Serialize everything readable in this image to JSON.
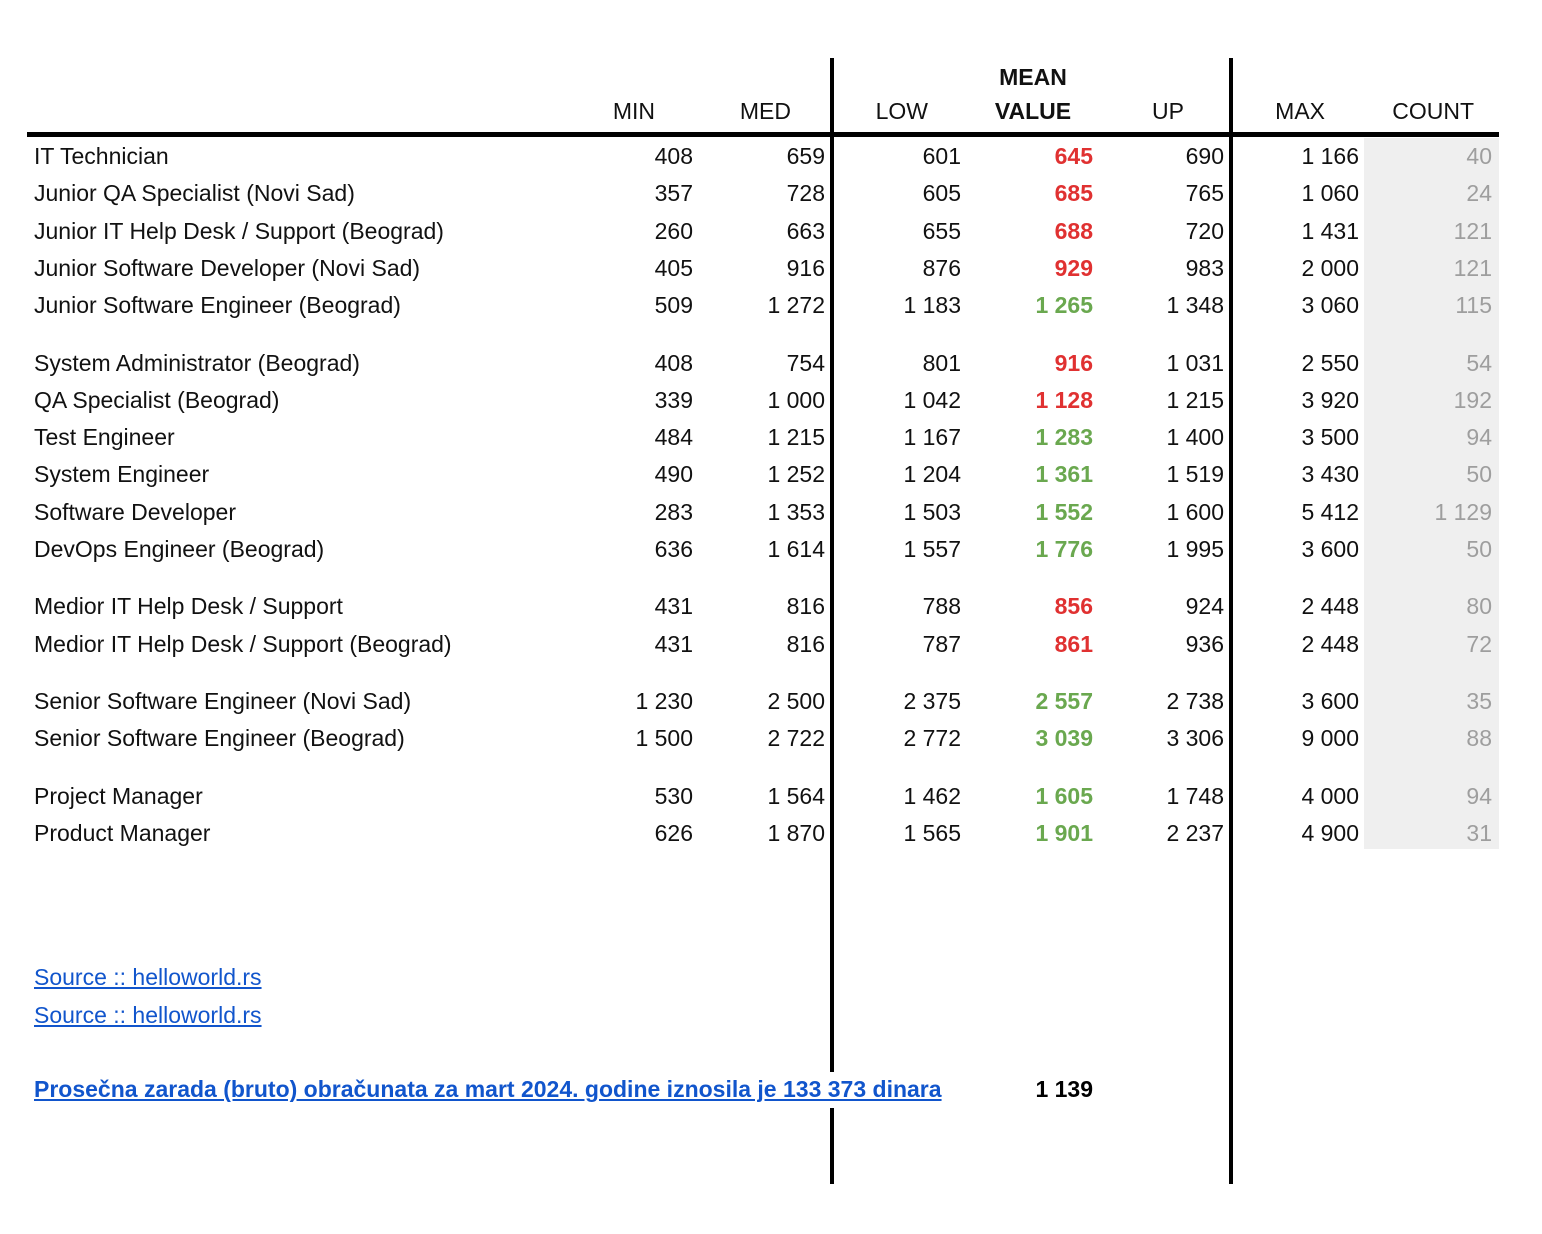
{
  "colors": {
    "mean_red": "#e03131",
    "mean_green": "#6aa84f",
    "link": "#1155cc",
    "count_text": "#9e9e9e",
    "count_bg": "#efefef"
  },
  "header": {
    "min": "MIN",
    "med": "MED",
    "low": "LOW",
    "mean_line1": "MEAN",
    "mean_line2": "VALUE",
    "up": "UP",
    "max": "MAX",
    "count": "COUNT"
  },
  "rows": [
    {
      "name": "IT Technician",
      "min": "408",
      "med": "659",
      "low": "601",
      "mean": "645",
      "mean_color": "red",
      "up": "690",
      "max": "1 166",
      "count": "40"
    },
    {
      "name": "Junior QA Specialist (Novi Sad)",
      "min": "357",
      "med": "728",
      "low": "605",
      "mean": "685",
      "mean_color": "red",
      "up": "765",
      "max": "1 060",
      "count": "24"
    },
    {
      "name": "Junior IT Help Desk / Support (Beograd)",
      "min": "260",
      "med": "663",
      "low": "655",
      "mean": "688",
      "mean_color": "red",
      "up": "720",
      "max": "1 431",
      "count": "121"
    },
    {
      "name": "Junior Software Developer (Novi Sad)",
      "min": "405",
      "med": "916",
      "low": "876",
      "mean": "929",
      "mean_color": "red",
      "up": "983",
      "max": "2 000",
      "count": "121"
    },
    {
      "name": "Junior Software Engineer (Beograd)",
      "min": "509",
      "med": "1 272",
      "low": "1 183",
      "mean": "1 265",
      "mean_color": "green",
      "up": "1 348",
      "max": "3 060",
      "count": "115"
    },
    {
      "name": "System Administrator (Beograd)",
      "min": "408",
      "med": "754",
      "low": "801",
      "mean": "916",
      "mean_color": "red",
      "up": "1 031",
      "max": "2 550",
      "count": "54"
    },
    {
      "name": "QA Specialist (Beograd)",
      "min": "339",
      "med": "1 000",
      "low": "1 042",
      "mean": "1 128",
      "mean_color": "red",
      "up": "1 215",
      "max": "3 920",
      "count": "192"
    },
    {
      "name": "Test Engineer",
      "min": "484",
      "med": "1 215",
      "low": "1 167",
      "mean": "1 283",
      "mean_color": "green",
      "up": "1 400",
      "max": "3 500",
      "count": "94"
    },
    {
      "name": "System Engineer",
      "min": "490",
      "med": "1 252",
      "low": "1 204",
      "mean": "1 361",
      "mean_color": "green",
      "up": "1 519",
      "max": "3 430",
      "count": "50"
    },
    {
      "name": "Software Developer",
      "min": "283",
      "med": "1 353",
      "low": "1 503",
      "mean": "1 552",
      "mean_color": "green",
      "up": "1 600",
      "max": "5 412",
      "count": "1 129"
    },
    {
      "name": "DevOps Engineer (Beograd)",
      "min": "636",
      "med": "1 614",
      "low": "1 557",
      "mean": "1 776",
      "mean_color": "green",
      "up": "1 995",
      "max": "3 600",
      "count": "50"
    },
    {
      "name": "Medior IT Help Desk / Support",
      "min": "431",
      "med": "816",
      "low": "788",
      "mean": "856",
      "mean_color": "red",
      "up": "924",
      "max": "2 448",
      "count": "80"
    },
    {
      "name": "Medior IT Help Desk / Support (Beograd)",
      "min": "431",
      "med": "816",
      "low": "787",
      "mean": "861",
      "mean_color": "red",
      "up": "936",
      "max": "2 448",
      "count": "72"
    },
    {
      "name": "Senior Software Engineer (Novi Sad)",
      "min": "1 230",
      "med": "2 500",
      "low": "2 375",
      "mean": "2 557",
      "mean_color": "green",
      "up": "2 738",
      "max": "3 600",
      "count": "35"
    },
    {
      "name": "Senior Software Engineer (Beograd)",
      "min": "1 500",
      "med": "2 722",
      "low": "2 772",
      "mean": "3 039",
      "mean_color": "green",
      "up": "3 306",
      "max": "9 000",
      "count": "88"
    },
    {
      "name": "Project Manager",
      "min": "530",
      "med": "1 564",
      "low": "1 462",
      "mean": "1 605",
      "mean_color": "green",
      "up": "1 748",
      "max": "4 000",
      "count": "94"
    },
    {
      "name": "Product Manager",
      "min": "626",
      "med": "1 870",
      "low": "1 565",
      "mean": "1 901",
      "mean_color": "green",
      "up": "2 237",
      "max": "4 900",
      "count": "31"
    }
  ],
  "links": [
    {
      "label": "Source :: helloworld.rs"
    },
    {
      "label": "Source :: helloworld.rs"
    }
  ],
  "footer": {
    "note": "Prosečna zarada (bruto) obračunata za mart 2024. godine iznosila je 133 373 dinara",
    "value": "1 139"
  }
}
